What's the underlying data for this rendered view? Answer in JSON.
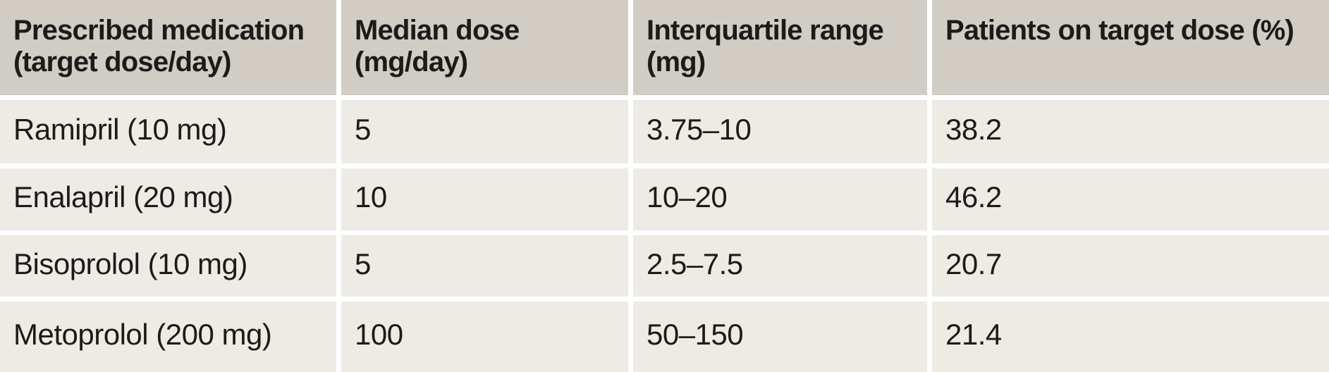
{
  "colors": {
    "header_background": "#d1cdc5",
    "row_background": "#edebe4",
    "gutter": "#ffffff",
    "text": "#1c1b19"
  },
  "chart_data": {
    "type": "table",
    "columns": [
      {
        "label": "Prescribed medication (target dose/day)",
        "lines": [
          "Prescribed medication",
          "(target dose/day)"
        ]
      },
      {
        "label": "Median dose (mg/day)",
        "lines": [
          "Median dose",
          "(mg/day)"
        ]
      },
      {
        "label": "Interquartile range (mg)",
        "lines": [
          "Interquartile range",
          "(mg)"
        ]
      },
      {
        "label": "Patients on target dose (%)",
        "lines": [
          "Patients on target dose (%)",
          ""
        ]
      }
    ],
    "rows": [
      {
        "cells": [
          "Ramipril (10 mg)",
          "5",
          "3.75–10",
          "38.2"
        ]
      },
      {
        "cells": [
          "Enalapril (20 mg)",
          "10",
          "10–20",
          "46.2"
        ]
      },
      {
        "cells": [
          "Bisoprolol (10 mg)",
          "5",
          "2.5–7.5",
          "20.7"
        ]
      },
      {
        "cells": [
          "Metoprolol (200 mg)",
          "100",
          "50–150",
          "21.4"
        ]
      }
    ]
  }
}
